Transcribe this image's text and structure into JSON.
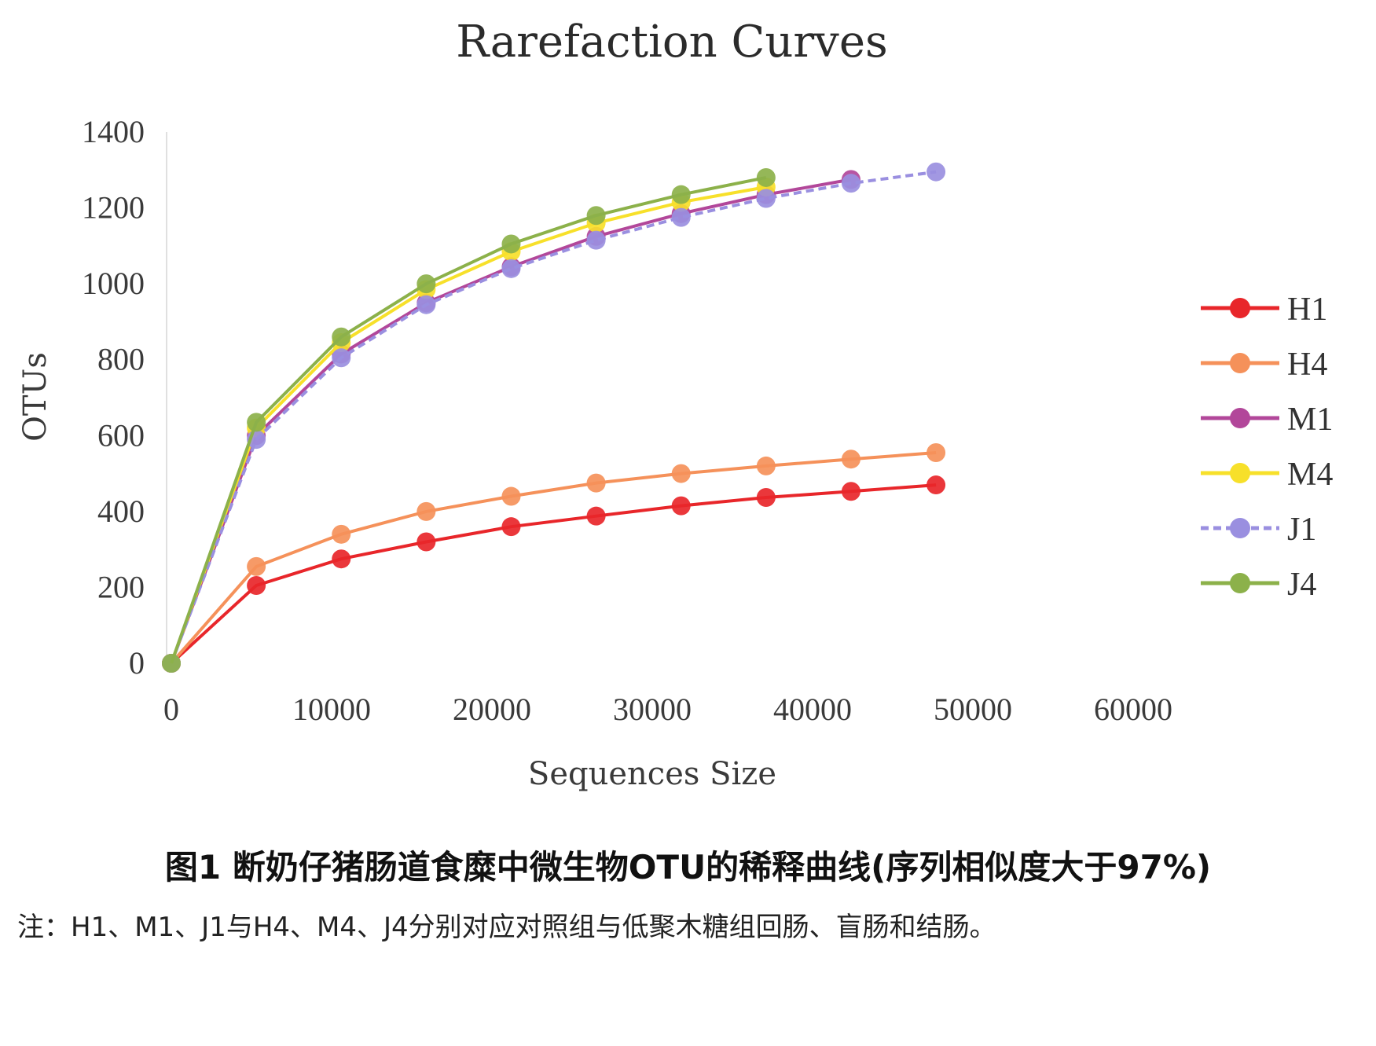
{
  "chart_data": {
    "type": "line",
    "title": "Rarefaction Curves",
    "xlabel": "Sequences Size",
    "ylabel": "OTUs",
    "xlim": [
      0,
      60000
    ],
    "ylim": [
      0,
      1400
    ],
    "x_ticks": [
      "0",
      "10000",
      "20000",
      "30000",
      "40000",
      "50000",
      "60000"
    ],
    "y_ticks": [
      "0",
      "200",
      "400",
      "600",
      "800",
      "1000",
      "1200",
      "1400"
    ],
    "grid": false,
    "legend_position": "right",
    "series": [
      {
        "name": "H1",
        "color": "#e8262a",
        "dashed": false,
        "x": [
          0,
          5300,
          10600,
          15900,
          21200,
          26500,
          31800,
          37100,
          42400,
          47700
        ],
        "y": [
          0,
          205,
          275,
          320,
          360,
          388,
          415,
          437,
          453,
          470
        ]
      },
      {
        "name": "H4",
        "color": "#f5915a",
        "dashed": false,
        "x": [
          0,
          5300,
          10600,
          15900,
          21200,
          26500,
          31800,
          37100,
          42400,
          47700
        ],
        "y": [
          0,
          255,
          340,
          400,
          440,
          475,
          500,
          520,
          538,
          555
        ]
      },
      {
        "name": "M1",
        "color": "#b2479a",
        "dashed": false,
        "x": [
          0,
          5300,
          10600,
          15900,
          21200,
          26500,
          31800,
          37100,
          42400
        ],
        "y": [
          0,
          600,
          815,
          950,
          1045,
          1125,
          1185,
          1235,
          1275
        ]
      },
      {
        "name": "M4",
        "color": "#f7e02a",
        "dashed": false,
        "x": [
          0,
          5300,
          10600,
          15900,
          21200,
          26500,
          31800,
          37100
        ],
        "y": [
          0,
          620,
          845,
          985,
          1085,
          1160,
          1215,
          1255
        ]
      },
      {
        "name": "J1",
        "color": "#9a8fe0",
        "dashed": true,
        "x": [
          0,
          5300,
          10600,
          15900,
          21200,
          26500,
          31800,
          37100,
          42400,
          47700
        ],
        "y": [
          0,
          590,
          805,
          945,
          1040,
          1115,
          1175,
          1225,
          1265,
          1295
        ]
      },
      {
        "name": "J4",
        "color": "#8cb14a",
        "dashed": false,
        "x": [
          0,
          5300,
          10600,
          15900,
          21200,
          26500,
          31800,
          37100
        ],
        "y": [
          0,
          635,
          860,
          1000,
          1105,
          1180,
          1235,
          1280
        ]
      }
    ]
  },
  "caption": "图1 断奶仔猪肠道食糜中微生物OTU的稀释曲线(序列相似度大于97%)",
  "note": "注：H1、M1、J1与H4、M4、J4分别对应对照组与低聚木糖组回肠、盲肠和结肠。"
}
